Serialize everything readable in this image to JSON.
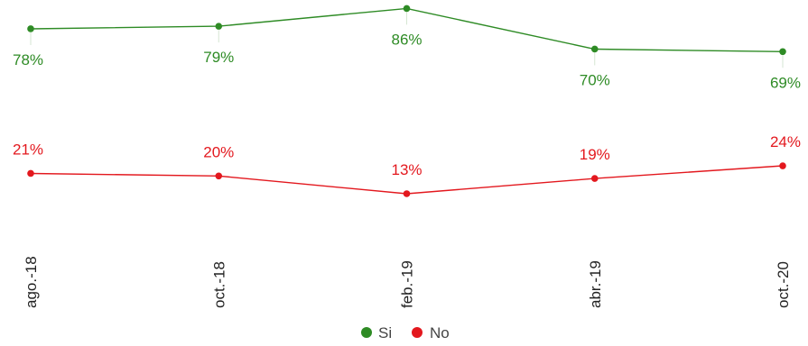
{
  "chart_data": {
    "type": "line",
    "categories": [
      "ago.-18",
      "oct.-18",
      "feb.-19",
      "abr.-19",
      "oct.-20"
    ],
    "series": [
      {
        "name": "Si",
        "values": [
          78,
          79,
          86,
          70,
          69
        ],
        "labels": [
          "78%",
          "79%",
          "86%",
          "70%",
          "69%"
        ],
        "color": "#2e8b25"
      },
      {
        "name": "No",
        "values": [
          21,
          20,
          13,
          19,
          24
        ],
        "labels": [
          "21%",
          "20%",
          "13%",
          "19%",
          "24%"
        ],
        "color": "#e3181e"
      }
    ],
    "title": "",
    "xlabel": "",
    "ylabel": "",
    "grid": false,
    "legend_position": "bottom-center"
  }
}
